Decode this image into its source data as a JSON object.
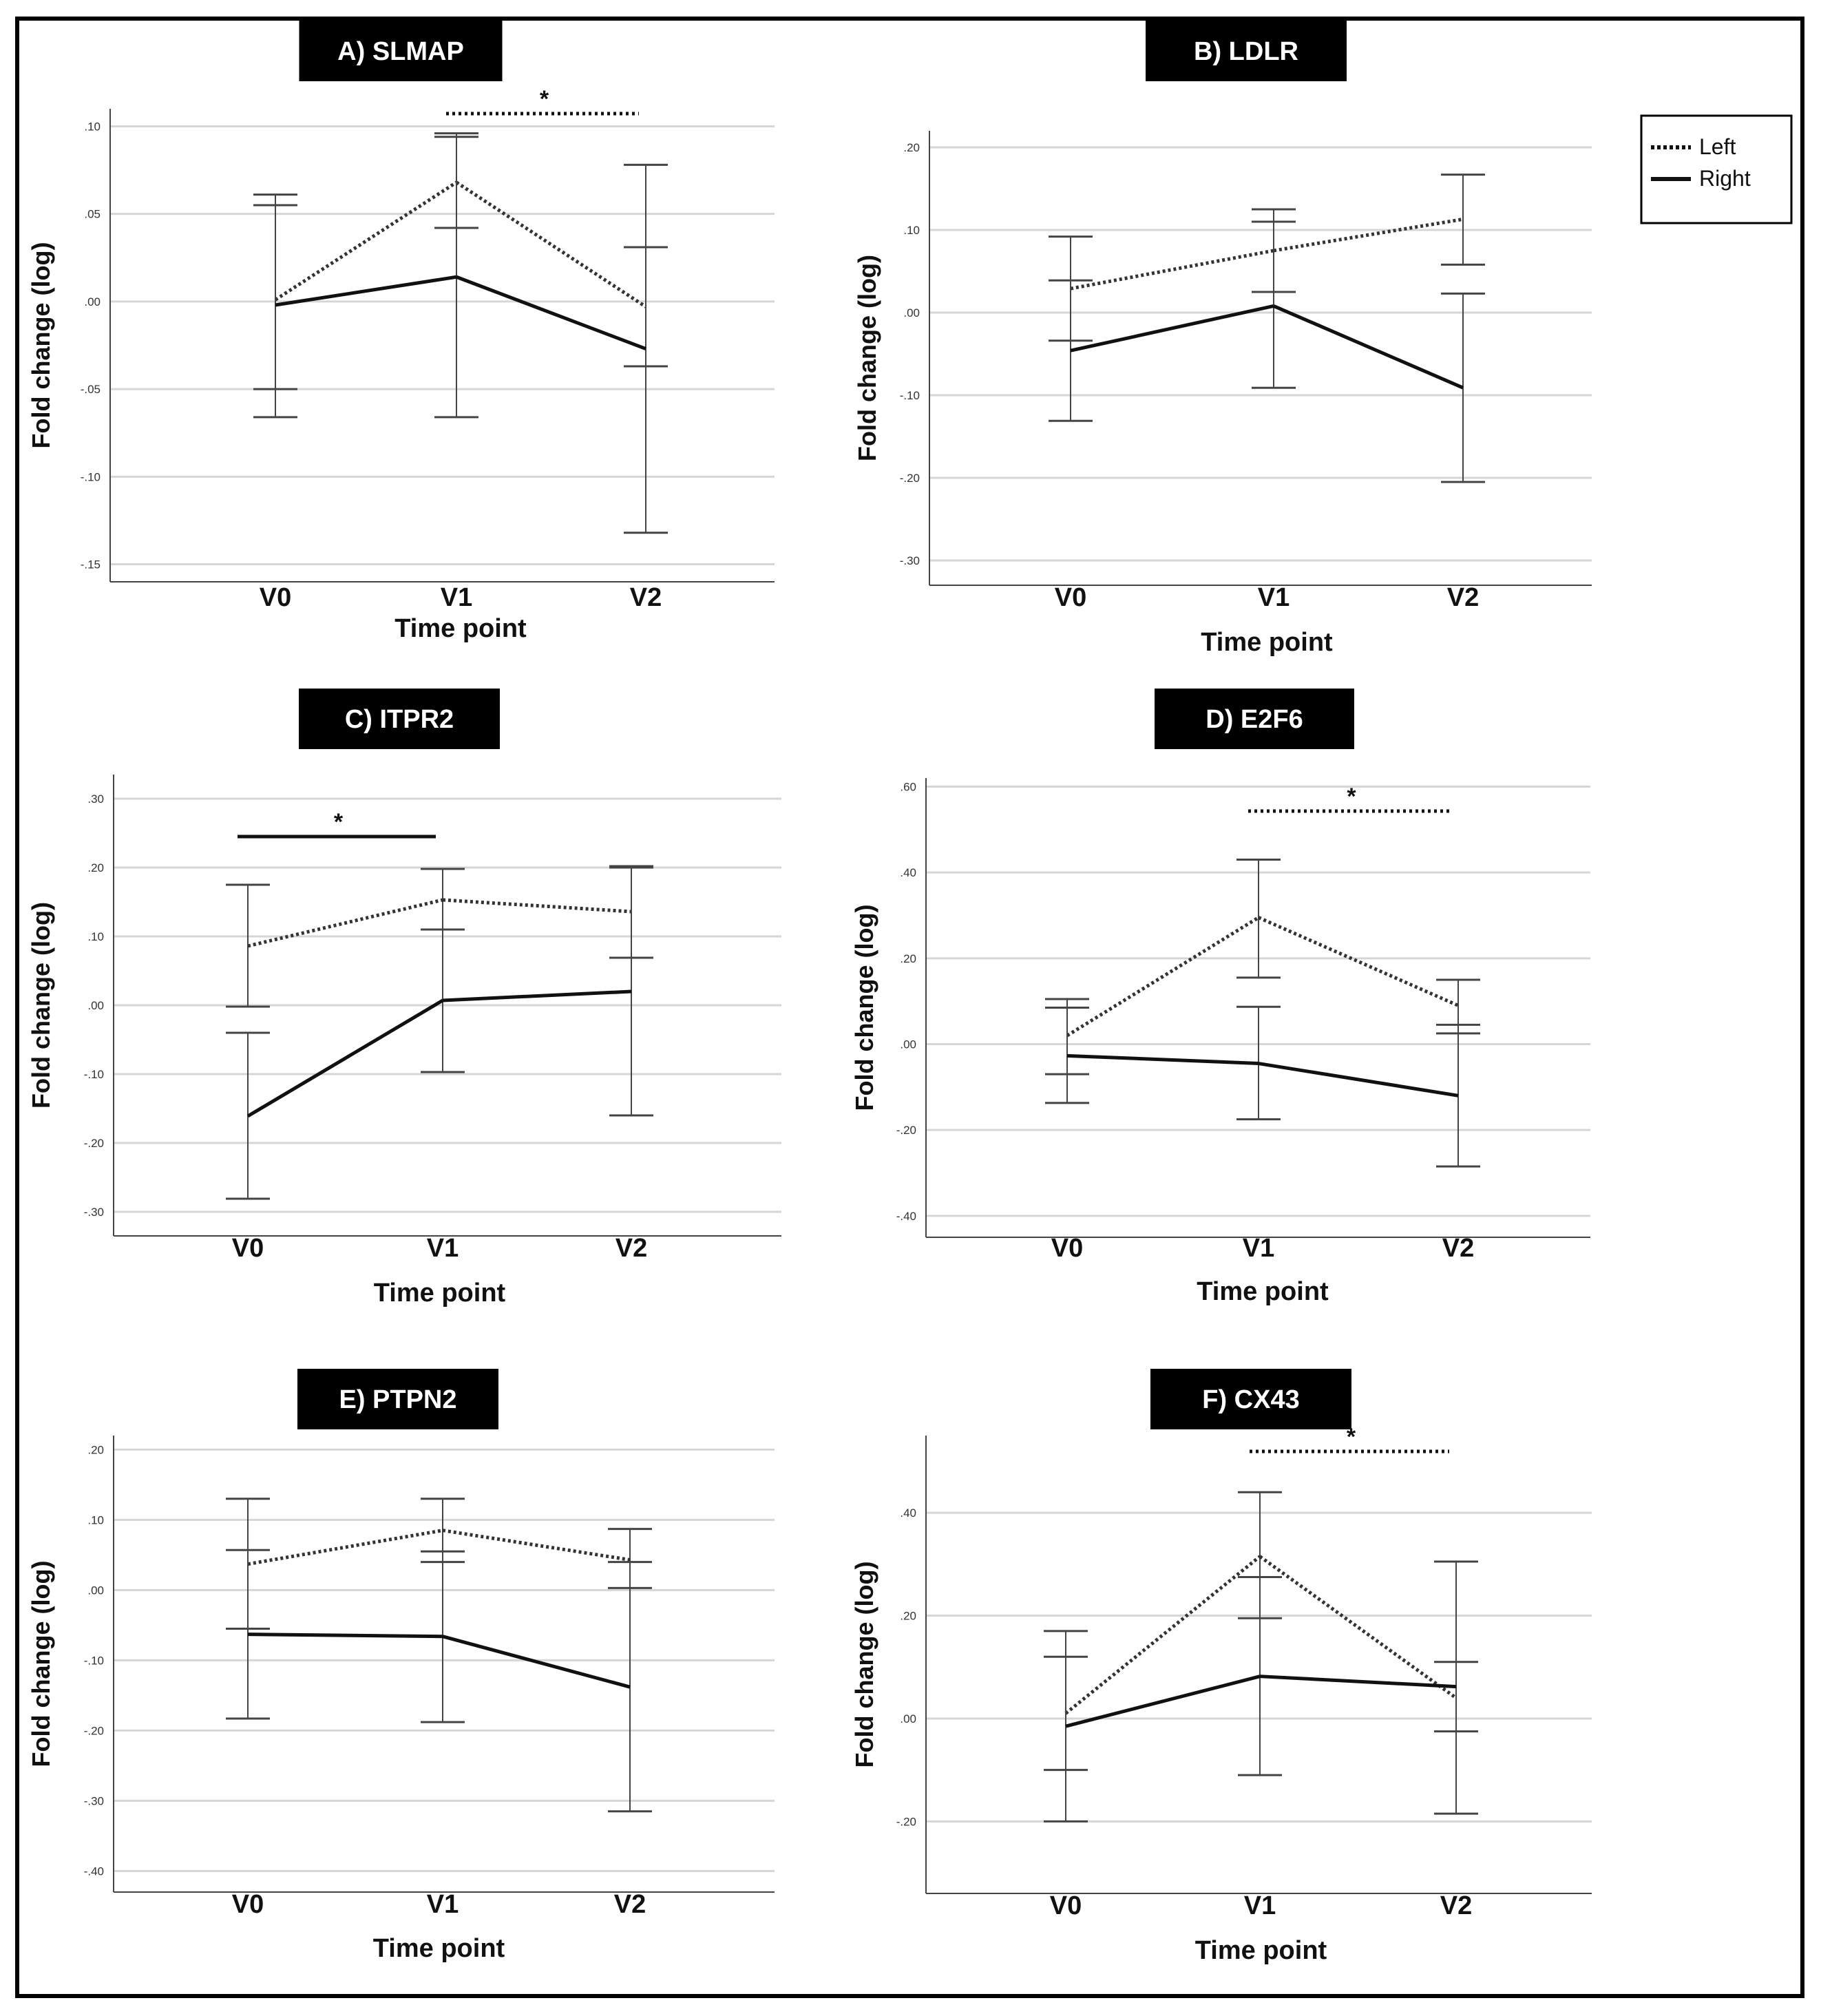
{
  "figure": {
    "legend": {
      "items": [
        {
          "label": "Left",
          "style": "dotted"
        },
        {
          "label": "Right",
          "style": "solid"
        }
      ],
      "placement": "top-right"
    }
  },
  "chart_data": [
    {
      "type": "line",
      "title": "A) SLMAP",
      "xlabel": "Time point",
      "ylabel": "Fold change (log)",
      "categories": [
        "V0",
        "V1",
        "V2"
      ],
      "ylim": [
        -0.16,
        0.11
      ],
      "yticks": [
        0.1,
        0.05,
        0.0,
        -0.05,
        -0.1,
        -0.15
      ],
      "ytick_labels": [
        ".10",
        ".05",
        ".00",
        "-.05",
        "-.10",
        "-.15"
      ],
      "series": [
        {
          "name": "Left",
          "style": "dotted",
          "values": [
            0.001,
            0.068,
            -0.003
          ],
          "lower": [
            -0.05,
            0.042,
            -0.037
          ],
          "upper": [
            0.061,
            0.096,
            0.031
          ]
        },
        {
          "name": "Right",
          "style": "solid",
          "values": [
            -0.002,
            0.014,
            -0.027
          ],
          "lower": [
            -0.066,
            -0.066,
            -0.132
          ],
          "upper": [
            0.055,
            0.094,
            0.078
          ]
        }
      ],
      "significance": [
        {
          "from": "V1",
          "to": "V2",
          "style": "dotted",
          "label": "*"
        }
      ]
    },
    {
      "type": "line",
      "title": "B)  LDLR",
      "xlabel": "Time point",
      "ylabel": "Fold change (log)",
      "categories": [
        "V0",
        "V1",
        "V2"
      ],
      "ylim": [
        -0.33,
        0.22
      ],
      "yticks": [
        0.2,
        0.1,
        0.0,
        -0.1,
        -0.2,
        -0.3
      ],
      "ytick_labels": [
        ".20",
        ".10",
        ".00",
        "-.10",
        "-.20",
        "-.30"
      ],
      "series": [
        {
          "name": "Left",
          "style": "dotted",
          "values": [
            0.029,
            0.075,
            0.113
          ],
          "lower": [
            -0.034,
            0.025,
            0.058
          ],
          "upper": [
            0.092,
            0.125,
            0.167
          ]
        },
        {
          "name": "Right",
          "style": "solid",
          "values": [
            -0.046,
            0.008,
            -0.091
          ],
          "lower": [
            -0.131,
            -0.091,
            -0.205
          ],
          "upper": [
            0.039,
            0.11,
            0.023
          ]
        }
      ],
      "significance": []
    },
    {
      "type": "line",
      "title": "C) ITPR2",
      "xlabel": "Time point",
      "ylabel": "Fold change (log)",
      "categories": [
        "V0",
        "V1",
        "V2"
      ],
      "ylim": [
        -0.335,
        0.335
      ],
      "yticks": [
        0.3,
        0.2,
        0.1,
        0.0,
        -0.1,
        -0.2,
        -0.3
      ],
      "ytick_labels": [
        ".30",
        ".20",
        ".10",
        ".00",
        "-.10",
        "-.20",
        "-.30"
      ],
      "series": [
        {
          "name": "Left",
          "style": "dotted",
          "values": [
            0.086,
            0.153,
            0.136
          ],
          "lower": [
            -0.002,
            0.11,
            0.069
          ],
          "upper": [
            0.175,
            0.198,
            0.202
          ]
        },
        {
          "name": "Right",
          "style": "solid",
          "values": [
            -0.161,
            0.007,
            0.02
          ],
          "lower": [
            -0.281,
            -0.097,
            -0.16
          ],
          "upper": [
            -0.04,
            0.11,
            0.2
          ]
        }
      ],
      "significance": [
        {
          "from": "V0",
          "to": "V1",
          "style": "solid",
          "label": "*"
        }
      ]
    },
    {
      "type": "line",
      "title": "D) E2F6",
      "xlabel": "Time point",
      "ylabel": "Fold change (log)",
      "categories": [
        "V0",
        "V1",
        "V2"
      ],
      "ylim": [
        -0.45,
        0.62
      ],
      "yticks": [
        0.6,
        0.4,
        0.2,
        0.0,
        -0.2,
        -0.4
      ],
      "ytick_labels": [
        ".60",
        ".40",
        ".20",
        ".00",
        "-.20",
        "-.40"
      ],
      "series": [
        {
          "name": "Left",
          "style": "dotted",
          "values": [
            0.02,
            0.295,
            0.09
          ],
          "lower": [
            -0.07,
            0.155,
            0.025
          ],
          "upper": [
            0.105,
            0.43,
            0.15
          ]
        },
        {
          "name": "Right",
          "style": "solid",
          "values": [
            -0.027,
            -0.045,
            -0.12
          ],
          "lower": [
            -0.137,
            -0.175,
            -0.285
          ],
          "upper": [
            0.085,
            0.087,
            0.045
          ]
        }
      ],
      "significance": [
        {
          "from": "V1",
          "to": "V2",
          "style": "dotted",
          "label": "*"
        }
      ]
    },
    {
      "type": "line",
      "title": "E) PTPN2",
      "xlabel": "Time point",
      "ylabel": "Fold change (log)",
      "categories": [
        "V0",
        "V1",
        "V2"
      ],
      "ylim": [
        -0.43,
        0.22
      ],
      "yticks": [
        0.2,
        0.1,
        0.0,
        -0.1,
        -0.2,
        -0.3,
        -0.4
      ],
      "ytick_labels": [
        ".20",
        ".10",
        ".00",
        "-.10",
        "-.20",
        "-.30",
        "-.40"
      ],
      "series": [
        {
          "name": "Left",
          "style": "dotted",
          "values": [
            0.037,
            0.085,
            0.043
          ],
          "lower": [
            -0.055,
            0.04,
            0.003
          ],
          "upper": [
            0.13,
            0.13,
            0.087
          ]
        },
        {
          "name": "Right",
          "style": "solid",
          "values": [
            -0.063,
            -0.066,
            -0.138
          ],
          "lower": [
            -0.183,
            -0.188,
            -0.315
          ],
          "upper": [
            0.057,
            0.055,
            0.04
          ]
        }
      ],
      "significance": []
    },
    {
      "type": "line",
      "title": "F) CX43",
      "xlabel": "Time point",
      "ylabel": "Fold change (log)",
      "categories": [
        "V0",
        "V1",
        "V2"
      ],
      "ylim": [
        -0.34,
        0.55
      ],
      "yticks": [
        0.4,
        0.2,
        0.0,
        -0.2
      ],
      "ytick_labels": [
        ".40",
        ".20",
        ".00",
        "-.20"
      ],
      "series": [
        {
          "name": "Left",
          "style": "dotted",
          "values": [
            0.01,
            0.315,
            0.04
          ],
          "lower": [
            -0.1,
            0.195,
            -0.025
          ],
          "upper": [
            0.12,
            0.44,
            0.11
          ]
        },
        {
          "name": "Right",
          "style": "solid",
          "values": [
            -0.015,
            0.082,
            0.062
          ],
          "lower": [
            -0.2,
            -0.11,
            -0.185
          ],
          "upper": [
            0.17,
            0.275,
            0.305
          ]
        }
      ],
      "significance": [
        {
          "from": "V1",
          "to": "V2",
          "style": "dotted",
          "label": "*"
        }
      ]
    }
  ]
}
